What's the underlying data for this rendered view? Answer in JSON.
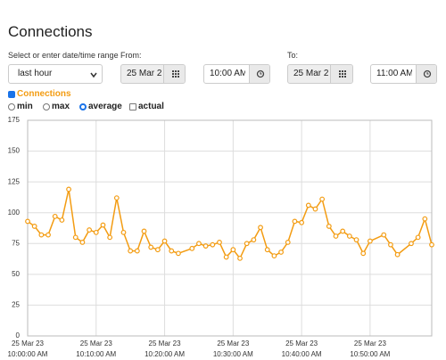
{
  "header": {
    "title": "Connections"
  },
  "controls": {
    "range_label": "Select or enter date/time range",
    "range_value": "last hour",
    "from_label": "From:",
    "from_date": "25 Mar 2",
    "from_time": "10:00 AM",
    "to_label": "To:",
    "to_date": "25 Mar 2",
    "to_time": "11:00 AM",
    "options": [
      "min",
      "max",
      "average",
      "actual"
    ]
  },
  "chart_data": {
    "type": "line",
    "x": [
      "25 Mar 23 10:00:00 AM",
      "25 Mar 23 10:01:00 AM",
      "25 Mar 23 10:02:00 AM",
      "25 Mar 23 10:03:00 AM",
      "25 Mar 23 10:04:00 AM",
      "25 Mar 23 10:05:00 AM",
      "25 Mar 23 10:06:00 AM",
      "25 Mar 23 10:07:00 AM",
      "25 Mar 23 10:08:00 AM",
      "25 Mar 23 10:09:00 AM",
      "25 Mar 23 10:10:00 AM",
      "25 Mar 23 10:11:00 AM",
      "25 Mar 23 10:12:00 AM",
      "25 Mar 23 10:13:00 AM",
      "25 Mar 23 10:14:00 AM",
      "25 Mar 23 10:15:00 AM",
      "25 Mar 23 10:16:00 AM",
      "25 Mar 23 10:17:00 AM",
      "25 Mar 23 10:18:00 AM",
      "25 Mar 23 10:19:00 AM",
      "25 Mar 23 10:20:00 AM",
      "25 Mar 23 10:21:00 AM",
      "25 Mar 23 10:22:00 AM",
      "25 Mar 23 10:24:00 AM",
      "25 Mar 23 10:25:00 AM",
      "25 Mar 23 10:26:00 AM",
      "25 Mar 23 10:27:00 AM",
      "25 Mar 23 10:28:00 AM",
      "25 Mar 23 10:29:00 AM",
      "25 Mar 23 10:30:00 AM",
      "25 Mar 23 10:31:00 AM",
      "25 Mar 23 10:32:00 AM",
      "25 Mar 23 10:33:00 AM",
      "25 Mar 23 10:34:00 AM",
      "25 Mar 23 10:35:00 AM",
      "25 Mar 23 10:36:00 AM",
      "25 Mar 23 10:37:00 AM",
      "25 Mar 23 10:38:00 AM",
      "25 Mar 23 10:39:00 AM",
      "25 Mar 23 10:40:00 AM",
      "25 Mar 23 10:41:00 AM",
      "25 Mar 23 10:42:00 AM",
      "25 Mar 23 10:43:00 AM",
      "25 Mar 23 10:44:00 AM",
      "25 Mar 23 10:45:00 AM",
      "25 Mar 23 10:46:00 AM",
      "25 Mar 23 10:47:00 AM",
      "25 Mar 23 10:48:00 AM",
      "25 Mar 23 10:49:00 AM",
      "25 Mar 23 10:50:00 AM",
      "25 Mar 23 10:52:00 AM",
      "25 Mar 23 10:53:00 AM",
      "25 Mar 23 10:54:00 AM",
      "25 Mar 23 10:56:00 AM",
      "25 Mar 23 10:57:00 AM",
      "25 Mar 23 10:58:00 AM",
      "25 Mar 23 10:59:00 AM"
    ],
    "series": [
      {
        "name": "Connections",
        "color": "#f39c12",
        "values": [
          93,
          89,
          82,
          82,
          97,
          94,
          119,
          80,
          76,
          86,
          84,
          90,
          80,
          112,
          84,
          69,
          69,
          85,
          72,
          70,
          77,
          69,
          67,
          71,
          75,
          73,
          74,
          76,
          64,
          70,
          63,
          75,
          78,
          88,
          70,
          65,
          68,
          76,
          93,
          92,
          106,
          103,
          111,
          89,
          81,
          85,
          81,
          78,
          67,
          77,
          82,
          74,
          66,
          75,
          80,
          95,
          74
        ]
      }
    ],
    "xlim": [
      "25 Mar 23 10:00:00 AM",
      "25 Mar 23 10:59:00 AM"
    ],
    "xticks": [
      "25 Mar 23 10:00:00 AM",
      "25 Mar 23 10:10:00 AM",
      "25 Mar 23 10:20:00 AM",
      "25 Mar 23 10:30:00 AM",
      "25 Mar 23 10:40:00 AM",
      "25 Mar 23 10:50:00 AM"
    ],
    "ylim": [
      0,
      175
    ],
    "yticks": [
      0,
      25,
      50,
      75,
      100,
      125,
      150,
      175
    ],
    "grid": true
  }
}
